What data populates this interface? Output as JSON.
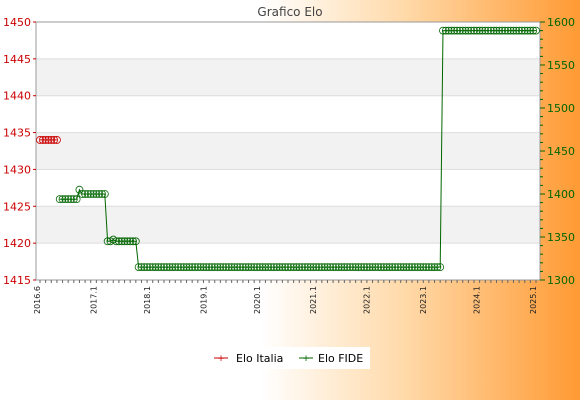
{
  "chart_data": {
    "type": "line",
    "title": "Grafico Elo",
    "xlabel": "",
    "ylabel": "",
    "ylim_left": [
      1415,
      1450
    ],
    "ylim_right": [
      1300,
      1600
    ],
    "yticks_left": [
      1415,
      1420,
      1425,
      1430,
      1435,
      1440,
      1445,
      1450
    ],
    "yticks_right": [
      1300,
      1350,
      1400,
      1450,
      1500,
      1550,
      1600
    ],
    "grid": true,
    "legend_position": "bottom",
    "colors": {
      "italia": "#cc0000",
      "fide": "#006600"
    },
    "series": [
      {
        "name": "Elo Italia",
        "axis": "left",
        "values": [
          1434,
          1434,
          1434,
          1434,
          1434,
          1434,
          1434
        ]
      },
      {
        "name": "Elo FIDE",
        "axis": "right",
        "values": [
          null,
          null,
          null,
          null,
          null,
          null,
          null,
          1394,
          1394,
          1394,
          1394,
          1394,
          1394,
          1394,
          1405,
          1400,
          1400,
          1400,
          1400,
          1400,
          1400,
          1400,
          1400,
          1400,
          1345,
          1345,
          1347,
          1345,
          1345,
          1345,
          1345,
          1345,
          1345,
          1345,
          1345,
          1315,
          1315,
          1315,
          1315,
          1315,
          1315,
          1315,
          1315,
          1315,
          1315,
          1315,
          1315,
          1315,
          1315,
          1315,
          1315,
          1315,
          1315,
          1315,
          1315,
          1315,
          1315,
          1315,
          1315,
          1315,
          1315,
          1315,
          1315,
          1315,
          1315,
          1315,
          1315,
          1315,
          1315,
          1315,
          1315,
          1315,
          1315,
          1315,
          1315,
          1315,
          1315,
          1315,
          1315,
          1315,
          1315,
          1315,
          1315,
          1315,
          1315,
          1315,
          1315,
          1315,
          1315,
          1315,
          1315,
          1315,
          1315,
          1315,
          1315,
          1315,
          1315,
          1315,
          1315,
          1315,
          1315,
          1315,
          1315,
          1315,
          1315,
          1315,
          1315,
          1315,
          1315,
          1315,
          1315,
          1315,
          1315,
          1315,
          1315,
          1315,
          1315,
          1315,
          1315,
          1315,
          1315,
          1315,
          1315,
          1315,
          1315,
          1315,
          1315,
          1315,
          1315,
          1315,
          1315,
          1315,
          1315,
          1315,
          1315,
          1315,
          1315,
          1315,
          1315,
          1315,
          1315,
          1315,
          1315,
          1590,
          1590,
          1590,
          1590,
          1590,
          1590,
          1590,
          1590,
          1590,
          1590,
          1590,
          1590,
          1590,
          1590,
          1590,
          1590,
          1590,
          1590,
          1590,
          1590,
          1590,
          1590,
          1590,
          1590,
          1590,
          1590,
          1590,
          1590,
          1590,
          1590,
          1590,
          1590,
          1590,
          1590
        ]
      }
    ],
    "x_labels_sample": [
      "2016.6",
      "2017.1",
      "2018.1",
      "2019.1",
      "2020.1",
      "2021.1",
      "2022.1",
      "2023.1",
      "2024.1",
      "2025.1"
    ]
  }
}
